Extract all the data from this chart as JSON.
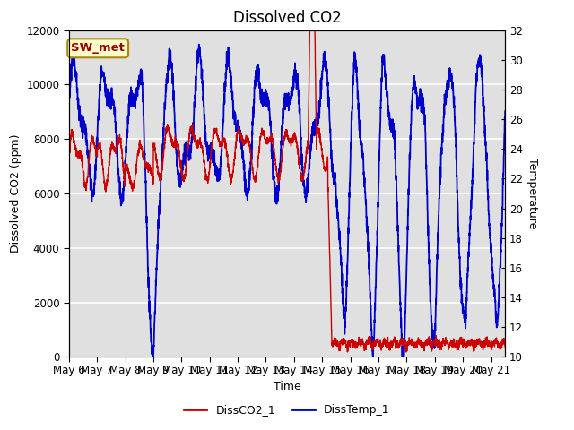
{
  "title": "Dissolved CO2",
  "xlabel": "Time",
  "ylabel_left": "Dissolved CO2 (ppm)",
  "ylabel_right": "Temperature",
  "xlim": [
    0,
    15.5
  ],
  "ylim_left": [
    0,
    12000
  ],
  "ylim_right": [
    10,
    32
  ],
  "xtick_labels": [
    "May 6",
    "May 7",
    "May 8",
    "May 9",
    "May 10",
    "May 11",
    "May 12",
    "May 13",
    "May 14",
    "May 15",
    "May 16",
    "May 17",
    "May 18",
    "May 19",
    "May 20",
    "May 21"
  ],
  "yticks_left": [
    0,
    2000,
    4000,
    6000,
    8000,
    10000,
    12000
  ],
  "yticks_right": [
    10,
    12,
    14,
    16,
    18,
    20,
    22,
    24,
    26,
    28,
    30,
    32
  ],
  "legend_items": [
    "DissCO2_1",
    "DissTemp_1"
  ],
  "legend_colors": [
    "#cc0000",
    "#0000cc"
  ],
  "annotation_label": "SW_met",
  "annotation_bg": "#ffffcc",
  "annotation_border": "#aa8800",
  "plot_bg": "#e0e0e0",
  "grid_color": "#ffffff",
  "title_fontsize": 12,
  "label_fontsize": 9,
  "tick_fontsize": 8.5
}
